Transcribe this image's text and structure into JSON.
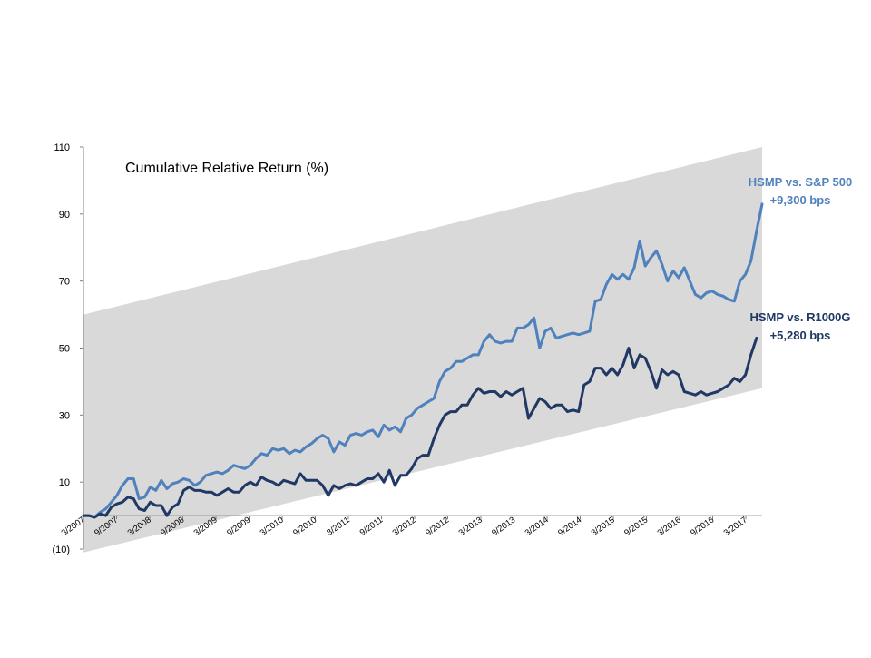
{
  "chart_data": {
    "type": "line",
    "title": "Cumulative Relative Return (%)",
    "xlabel": "",
    "ylabel": "",
    "ylim": [
      -10,
      110
    ],
    "y_ticks": [
      {
        "value": 110,
        "label": "110"
      },
      {
        "value": 90,
        "label": "90"
      },
      {
        "value": 70,
        "label": "70"
      },
      {
        "value": 50,
        "label": "50"
      },
      {
        "value": 30,
        "label": "30"
      },
      {
        "value": 10,
        "label": "10"
      },
      {
        "value": -10,
        "label": "(10)"
      }
    ],
    "x_tick_labels": [
      "3/2007",
      "9/2007",
      "3/2008",
      "9/2008",
      "3/2009",
      "9/2009",
      "3/2010",
      "9/2010",
      "3/2011",
      "9/2011",
      "3/2012",
      "9/2012",
      "3/2013",
      "9/2013",
      "3/2014",
      "9/2014",
      "3/2015",
      "9/2015",
      "3/2016",
      "9/2016",
      "3/2017"
    ],
    "band": {
      "color": "#d9d9d9",
      "upper": {
        "start": 60,
        "end": 110
      },
      "lower": {
        "start": -11,
        "end": 38
      }
    },
    "series": [
      {
        "name": "HSMP vs. S&P 500",
        "color": "#4f81bd",
        "values": [
          0,
          0,
          -0.5,
          1,
          2,
          4,
          6,
          9,
          11,
          11,
          5,
          5.5,
          8.5,
          7.5,
          10.5,
          8,
          9.5,
          10,
          11,
          10.5,
          9,
          10,
          12,
          12.5,
          13,
          12.5,
          13.5,
          15,
          14.5,
          14,
          15,
          17,
          18.5,
          18,
          20,
          19.5,
          20,
          18.5,
          19.5,
          19,
          20.5,
          21.5,
          23,
          24,
          23,
          19,
          22,
          21,
          24,
          24.5,
          24,
          25,
          25.5,
          23.5,
          27,
          25.5,
          26.5,
          25,
          29,
          30,
          32,
          33,
          34,
          35,
          40,
          43,
          44,
          46,
          46,
          47,
          48,
          48,
          52,
          54,
          52,
          51.5,
          52,
          52,
          56,
          56,
          57,
          59,
          50,
          55,
          56,
          53,
          53.5,
          54,
          54.5,
          54,
          54.5,
          55,
          64,
          64.5,
          69,
          72,
          70.5,
          72,
          70.5,
          74,
          82,
          74.5,
          77,
          79,
          75,
          70,
          73,
          71,
          74,
          70,
          66,
          65,
          66.5,
          67,
          66,
          65.5,
          64.5,
          64,
          70,
          72,
          76,
          85,
          93
        ]
      },
      {
        "name": "HSMP vs. R1000G",
        "color": "#1f3864",
        "values": [
          0,
          0,
          -0.5,
          0.5,
          0,
          2.5,
          3.5,
          4,
          5.5,
          5,
          2,
          1.5,
          4,
          3,
          3,
          0,
          2.5,
          3.5,
          7.5,
          8.5,
          7.5,
          7.5,
          7,
          7,
          6,
          7,
          8,
          7,
          7,
          9,
          10,
          9,
          11.5,
          10.5,
          10,
          9,
          10.5,
          10,
          9.5,
          12.5,
          10.5,
          10.5,
          10.5,
          9,
          6,
          9,
          8,
          9,
          9.5,
          9,
          10,
          11,
          11,
          12.5,
          10,
          13.5,
          9,
          12,
          12,
          14,
          17,
          18,
          18,
          23,
          27,
          30,
          31,
          31,
          33,
          33,
          36,
          38,
          36.5,
          37,
          37,
          35.5,
          37,
          36,
          37,
          38,
          29,
          32,
          35,
          34,
          32,
          33,
          33,
          31,
          31.5,
          31,
          39,
          40,
          44,
          44,
          42,
          44,
          42,
          45,
          50,
          44,
          48,
          47,
          43,
          38,
          43.5,
          42,
          43,
          42,
          37,
          36.5,
          36,
          37,
          36,
          36.5,
          37,
          38,
          39,
          41,
          40,
          42,
          48,
          53
        ]
      }
    ],
    "annotations": [
      {
        "line1": "HSMP vs. S&P 500",
        "line2": "+9,300 bps",
        "color": "#4f81bd"
      },
      {
        "line1": "HSMP vs. R1000G",
        "line2": "+5,280 bps",
        "color": "#1f3864"
      }
    ]
  }
}
